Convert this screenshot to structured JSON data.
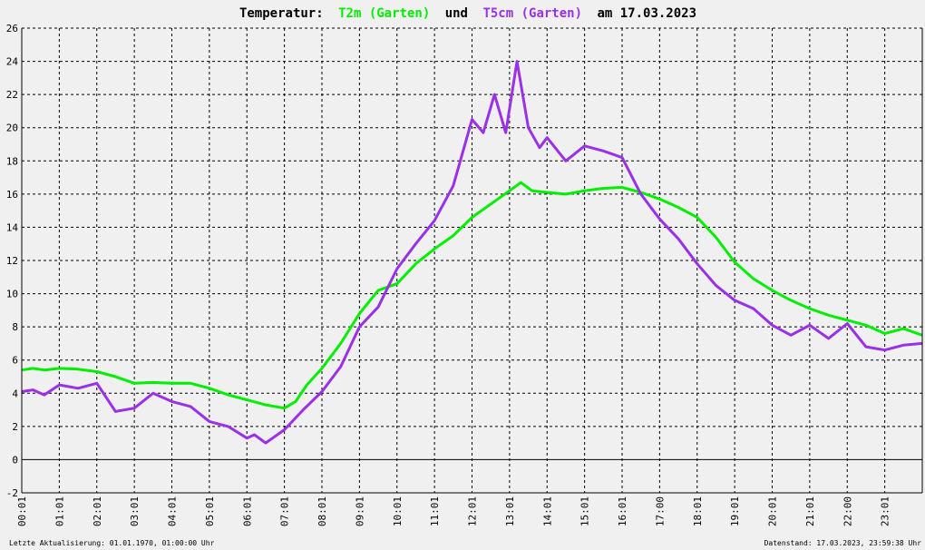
{
  "title": {
    "prefix": "Temperatur:",
    "series1": "T2m (Garten)",
    "connector": "und",
    "series2": "T5cm (Garten)",
    "date": "am 17.03.2023"
  },
  "footer": {
    "left": "Letzte Aktualisierung: 01.01.1970, 01:00:00 Uhr",
    "right": "Datenstand: 17.03.2023, 23:59:38 Uhr"
  },
  "colors": {
    "t2m": "#00ee00",
    "t5cm": "#9a30e8",
    "background": "#f0f0f0",
    "axis": "#000000"
  },
  "chart_data": {
    "type": "line",
    "title": "Temperatur: T2m (Garten) und T5cm (Garten) am 17.03.2023",
    "xlabel": "",
    "ylabel": "",
    "grid": true,
    "ylim": [
      -2,
      26
    ],
    "xlim": [
      0,
      24
    ],
    "x_unit": "hours",
    "yticks": [
      "-2",
      "0",
      "2",
      "4",
      "6",
      "8",
      "10",
      "12",
      "14",
      "16",
      "18",
      "20",
      "22",
      "24",
      "26"
    ],
    "xticks": [
      "00:01",
      "01:01",
      "02:01",
      "03:01",
      "04:01",
      "05:01",
      "06:01",
      "07:01",
      "08:01",
      "09:01",
      "10:01",
      "11:01",
      "12:01",
      "13:01",
      "14:01",
      "15:01",
      "16:01",
      "17:00",
      "18:01",
      "19:01",
      "20:01",
      "21:01",
      "22:00",
      "23:01"
    ],
    "series": [
      {
        "name": "T2m (Garten)",
        "color": "#00ee00",
        "points": [
          [
            0,
            5.4
          ],
          [
            0.3,
            5.5
          ],
          [
            0.6,
            5.4
          ],
          [
            1,
            5.5
          ],
          [
            1.5,
            5.45
          ],
          [
            2,
            5.3
          ],
          [
            2.5,
            5.0
          ],
          [
            3,
            4.6
          ],
          [
            3.5,
            4.65
          ],
          [
            4,
            4.6
          ],
          [
            4.5,
            4.6
          ],
          [
            5,
            4.3
          ],
          [
            5.5,
            3.9
          ],
          [
            6,
            3.6
          ],
          [
            6.5,
            3.3
          ],
          [
            7,
            3.1
          ],
          [
            7.3,
            3.5
          ],
          [
            7.6,
            4.5
          ],
          [
            8,
            5.5
          ],
          [
            8.5,
            7.0
          ],
          [
            9,
            8.8
          ],
          [
            9.5,
            10.2
          ],
          [
            10,
            10.6
          ],
          [
            10.5,
            11.8
          ],
          [
            11,
            12.7
          ],
          [
            11.5,
            13.5
          ],
          [
            12,
            14.6
          ],
          [
            12.5,
            15.4
          ],
          [
            13,
            16.2
          ],
          [
            13.3,
            16.7
          ],
          [
            13.6,
            16.2
          ],
          [
            14,
            16.1
          ],
          [
            14.5,
            16.0
          ],
          [
            15,
            16.2
          ],
          [
            15.5,
            16.35
          ],
          [
            16,
            16.4
          ],
          [
            16.5,
            16.1
          ],
          [
            17,
            15.7
          ],
          [
            17.5,
            15.2
          ],
          [
            18,
            14.6
          ],
          [
            18.5,
            13.4
          ],
          [
            19,
            11.9
          ],
          [
            19.5,
            10.9
          ],
          [
            20,
            10.2
          ],
          [
            20.5,
            9.6
          ],
          [
            21,
            9.1
          ],
          [
            21.5,
            8.7
          ],
          [
            22,
            8.4
          ],
          [
            22.5,
            8.1
          ],
          [
            23,
            7.6
          ],
          [
            23.5,
            7.9
          ],
          [
            24,
            7.5
          ]
        ]
      },
      {
        "name": "T5cm (Garten)",
        "color": "#9a30e8",
        "points": [
          [
            0,
            4.1
          ],
          [
            0.3,
            4.2
          ],
          [
            0.6,
            3.9
          ],
          [
            1,
            4.5
          ],
          [
            1.5,
            4.3
          ],
          [
            2,
            4.6
          ],
          [
            2.5,
            2.9
          ],
          [
            3,
            3.1
          ],
          [
            3.5,
            4.0
          ],
          [
            4,
            3.5
          ],
          [
            4.5,
            3.2
          ],
          [
            5,
            2.3
          ],
          [
            5.5,
            2.0
          ],
          [
            6,
            1.3
          ],
          [
            6.2,
            1.5
          ],
          [
            6.5,
            1.0
          ],
          [
            7,
            1.8
          ],
          [
            7.5,
            3.0
          ],
          [
            8,
            4.1
          ],
          [
            8.5,
            5.6
          ],
          [
            9,
            8.0
          ],
          [
            9.5,
            9.2
          ],
          [
            10,
            11.5
          ],
          [
            10.5,
            13.0
          ],
          [
            11,
            14.4
          ],
          [
            11.5,
            16.5
          ],
          [
            12,
            20.5
          ],
          [
            12.3,
            19.7
          ],
          [
            12.6,
            22.0
          ],
          [
            12.9,
            19.7
          ],
          [
            13.2,
            24.0
          ],
          [
            13.5,
            20.0
          ],
          [
            13.8,
            18.8
          ],
          [
            14,
            19.4
          ],
          [
            14.5,
            18.0
          ],
          [
            15,
            18.9
          ],
          [
            15.5,
            18.6
          ],
          [
            16,
            18.2
          ],
          [
            16.5,
            16.0
          ],
          [
            17,
            14.5
          ],
          [
            17.5,
            13.3
          ],
          [
            18,
            11.8
          ],
          [
            18.5,
            10.5
          ],
          [
            19,
            9.6
          ],
          [
            19.5,
            9.1
          ],
          [
            20,
            8.1
          ],
          [
            20.5,
            7.5
          ],
          [
            21,
            8.1
          ],
          [
            21.5,
            7.3
          ],
          [
            22,
            8.2
          ],
          [
            22.5,
            6.8
          ],
          [
            23,
            6.6
          ],
          [
            23.5,
            6.9
          ],
          [
            24,
            7.0
          ]
        ]
      }
    ]
  }
}
